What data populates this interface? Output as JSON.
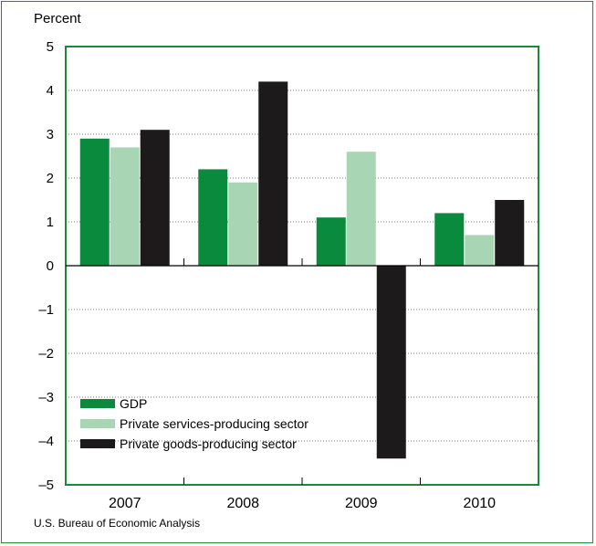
{
  "source": "U.S. Bureau of Economic Analysis",
  "chart_data": {
    "type": "bar",
    "title": "",
    "ylabel": "Percent",
    "xlabel": "",
    "categories": [
      "2007",
      "2008",
      "2009",
      "2010"
    ],
    "ylim": [
      -5,
      5
    ],
    "yticks": [
      5,
      4,
      3,
      2,
      1,
      0,
      -1,
      -2,
      -3,
      -4,
      -5
    ],
    "ytick_labels": [
      "5",
      "4",
      "3",
      "2",
      "1",
      "0",
      "–1",
      "–2",
      "–3",
      "–4",
      "–5"
    ],
    "grid": "horizontal dotted",
    "legend_position": "lower-left",
    "series": [
      {
        "name": "GDP",
        "color": "#0a8a3c",
        "values": [
          2.9,
          2.2,
          1.1,
          1.2
        ]
      },
      {
        "name": "Private services-producing sector",
        "color": "#a8d5b3",
        "values": [
          2.7,
          1.9,
          2.6,
          0.7
        ]
      },
      {
        "name": "Private goods-producing sector",
        "color": "#1c1a1a",
        "values": [
          3.1,
          4.2,
          -4.4,
          1.5
        ]
      }
    ]
  }
}
